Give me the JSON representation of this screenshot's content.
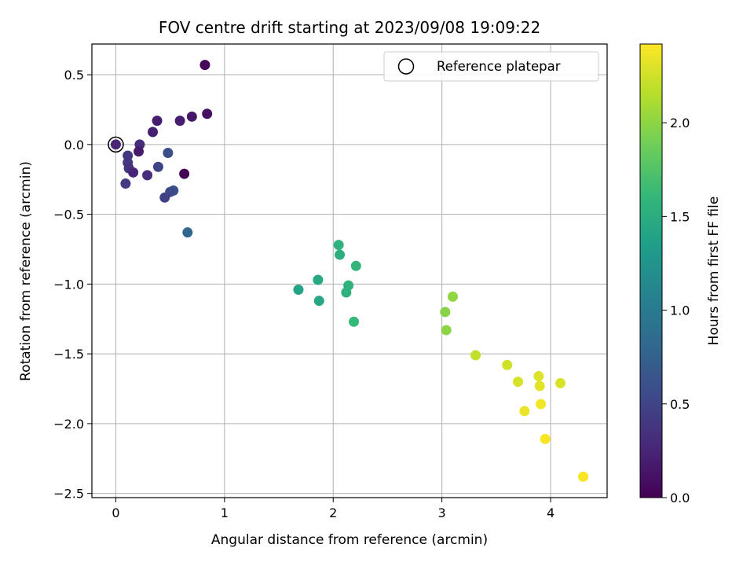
{
  "chart_data": {
    "type": "scatter",
    "title": "FOV centre drift starting at 2023/09/08 19:09:22",
    "xlabel": "Angular distance from reference (arcmin)",
    "ylabel": "Rotation from reference (arcmin)",
    "xlim": [
      -0.22,
      4.52
    ],
    "ylim": [
      -2.53,
      0.72
    ],
    "xticks": [
      0,
      1,
      2,
      3,
      4
    ],
    "yticks": [
      0.5,
      0.0,
      -0.5,
      -1.0,
      -1.5,
      -2.0,
      -2.5
    ],
    "xtick_labels": [
      "0",
      "1",
      "2",
      "3",
      "4"
    ],
    "ytick_labels": [
      "0.5",
      "0.0",
      "−0.5",
      "−1.0",
      "−1.5",
      "−2.0",
      "−2.5"
    ],
    "grid": true,
    "legend": {
      "placement": "top-right",
      "entries": [
        "Reference platepar"
      ]
    },
    "colorbar": {
      "label": "Hours from first FF file",
      "colormap": "viridis",
      "range": [
        0.0,
        2.42
      ],
      "ticks": [
        0.0,
        0.5,
        1.0,
        1.5,
        2.0
      ],
      "tick_labels": [
        "0.0",
        "0.5",
        "1.0",
        "1.5",
        "2.0"
      ]
    },
    "reference_point": {
      "x": 0.0,
      "y": 0.0
    },
    "points": [
      {
        "x": 0.82,
        "y": 0.57,
        "c": 0.05
      },
      {
        "x": 0.84,
        "y": 0.22,
        "c": 0.1
      },
      {
        "x": 0.7,
        "y": 0.2,
        "c": 0.15
      },
      {
        "x": 0.59,
        "y": 0.17,
        "c": 0.2
      },
      {
        "x": 0.38,
        "y": 0.17,
        "c": 0.2
      },
      {
        "x": 0.34,
        "y": 0.09,
        "c": 0.22
      },
      {
        "x": 0.0,
        "y": 0.0,
        "c": 0.25
      },
      {
        "x": 0.22,
        "y": 0.0,
        "c": 0.3
      },
      {
        "x": 0.21,
        "y": -0.05,
        "c": 0.18
      },
      {
        "x": 0.11,
        "y": -0.08,
        "c": 0.4
      },
      {
        "x": 0.11,
        "y": -0.13,
        "c": 0.38
      },
      {
        "x": 0.12,
        "y": -0.17,
        "c": 0.35
      },
      {
        "x": 0.16,
        "y": -0.2,
        "c": 0.25
      },
      {
        "x": 0.29,
        "y": -0.22,
        "c": 0.32
      },
      {
        "x": 0.39,
        "y": -0.16,
        "c": 0.5
      },
      {
        "x": 0.48,
        "y": -0.06,
        "c": 0.58
      },
      {
        "x": 0.63,
        "y": -0.21,
        "c": 0.02
      },
      {
        "x": 0.09,
        "y": -0.28,
        "c": 0.42
      },
      {
        "x": 0.53,
        "y": -0.33,
        "c": 0.6
      },
      {
        "x": 0.5,
        "y": -0.34,
        "c": 0.55
      },
      {
        "x": 0.45,
        "y": -0.38,
        "c": 0.48
      },
      {
        "x": 0.66,
        "y": -0.63,
        "c": 0.8
      },
      {
        "x": 2.05,
        "y": -0.72,
        "c": 1.55
      },
      {
        "x": 2.06,
        "y": -0.79,
        "c": 1.52
      },
      {
        "x": 2.21,
        "y": -0.87,
        "c": 1.58
      },
      {
        "x": 1.86,
        "y": -0.97,
        "c": 1.45
      },
      {
        "x": 2.14,
        "y": -1.01,
        "c": 1.56
      },
      {
        "x": 1.68,
        "y": -1.04,
        "c": 1.4
      },
      {
        "x": 2.12,
        "y": -1.06,
        "c": 1.54
      },
      {
        "x": 1.87,
        "y": -1.12,
        "c": 1.44
      },
      {
        "x": 2.19,
        "y": -1.27,
        "c": 1.62
      },
      {
        "x": 3.1,
        "y": -1.09,
        "c": 2.02
      },
      {
        "x": 3.03,
        "y": -1.2,
        "c": 1.98
      },
      {
        "x": 3.04,
        "y": -1.33,
        "c": 2.0
      },
      {
        "x": 3.31,
        "y": -1.51,
        "c": 2.2
      },
      {
        "x": 3.6,
        "y": -1.58,
        "c": 2.25
      },
      {
        "x": 3.89,
        "y": -1.66,
        "c": 2.3
      },
      {
        "x": 3.7,
        "y": -1.7,
        "c": 2.27
      },
      {
        "x": 4.09,
        "y": -1.71,
        "c": 2.28
      },
      {
        "x": 3.9,
        "y": -1.73,
        "c": 2.32
      },
      {
        "x": 3.91,
        "y": -1.86,
        "c": 2.38
      },
      {
        "x": 3.76,
        "y": -1.91,
        "c": 2.35
      },
      {
        "x": 3.95,
        "y": -2.11,
        "c": 2.4
      },
      {
        "x": 4.3,
        "y": -2.38,
        "c": 2.4
      }
    ]
  }
}
